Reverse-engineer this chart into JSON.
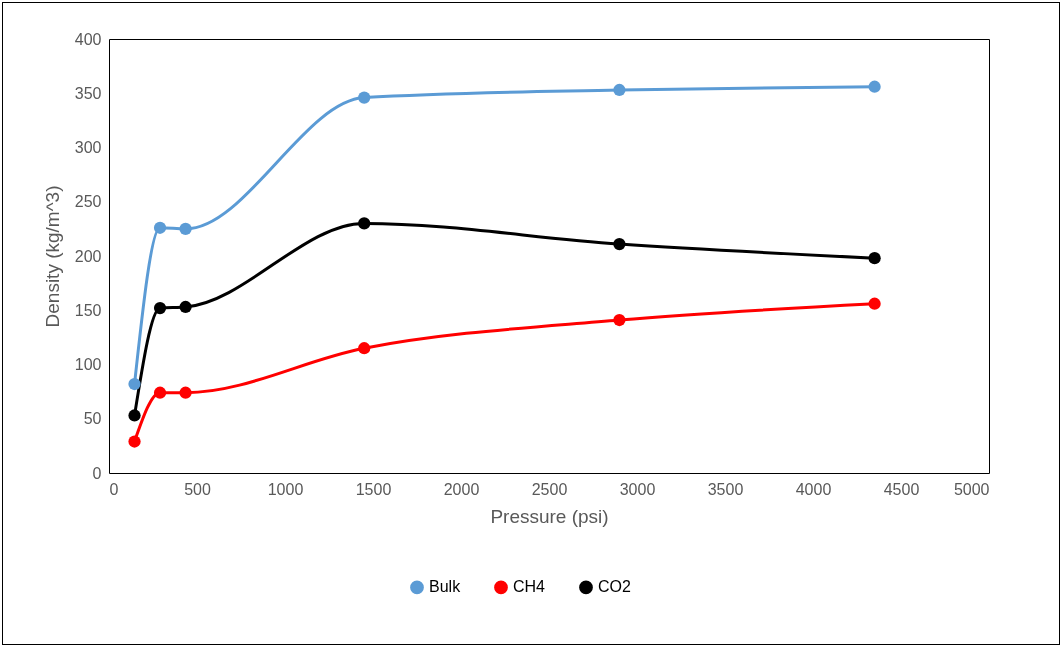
{
  "chart_data": {
    "type": "line",
    "xlabel": "Pressure (psi)",
    "ylabel": "Density (kg/m^3)",
    "x": [
      145,
      290,
      435,
      1450,
      2900,
      4350
    ],
    "series": [
      {
        "name": "Bulk",
        "color": "#5b9bd5",
        "values": [
          82,
          226,
          225,
          346,
          353,
          356
        ]
      },
      {
        "name": "CH4",
        "color": "#ff0000",
        "values": [
          29,
          74,
          74,
          115,
          141,
          156
        ]
      },
      {
        "name": "CO2",
        "color": "#000000",
        "values": [
          53,
          152,
          153,
          230,
          211,
          198
        ]
      }
    ],
    "xlim": [
      0,
      5000
    ],
    "xticks": [
      0,
      500,
      1000,
      1500,
      2000,
      2500,
      3000,
      3500,
      4000,
      4500,
      5000
    ],
    "ylim": [
      0,
      400
    ],
    "yticks": [
      0,
      50,
      100,
      150,
      200,
      250,
      300,
      350,
      400
    ],
    "grid": false,
    "legend": "bottom",
    "marker": "circle",
    "line_style": "solid"
  }
}
